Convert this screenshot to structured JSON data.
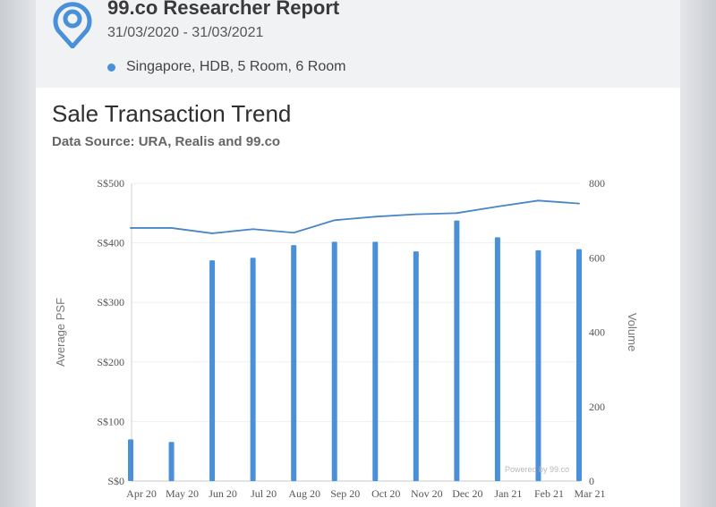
{
  "report": {
    "title": "99.co Researcher Report",
    "date_range": "31/03/2020 - 31/03/2021",
    "filter": "Singapore, HDB, 5 Room, 6 Room"
  },
  "colors": {
    "accent": "#4a90d9",
    "bar": "#4a90d9",
    "line": "#4a86c5"
  },
  "chart_data": {
    "type": "bar+line",
    "title": "Sale Transaction Trend",
    "subtitle": "Data Source: URA, Realis and 99.co",
    "categories": [
      "Apr 20",
      "May 20",
      "Jun 20",
      "Jul 20",
      "Aug 20",
      "Sep 20",
      "Oct 20",
      "Nov 20",
      "Dec 20",
      "Jan 21",
      "Feb 21",
      "Mar 21"
    ],
    "series": [
      {
        "type": "bar",
        "axis": "right",
        "values": [
          112,
          105,
          593,
          600,
          634,
          643,
          643,
          617,
          700,
          655,
          620,
          623
        ]
      },
      {
        "type": "line",
        "axis": "left",
        "values": [
          425,
          425,
          416,
          423,
          417,
          438,
          444,
          448,
          450,
          461,
          471,
          466
        ]
      }
    ],
    "ylabel_left": "Average PSF",
    "ylabel_right": "Volume",
    "ylim_left": [
      0,
      500
    ],
    "ylim_right": [
      0,
      800
    ],
    "yticks_left": [
      "S$0",
      "S$100",
      "S$200",
      "S$300",
      "S$400",
      "S$500"
    ],
    "yticks_right": [
      "0",
      "200",
      "400",
      "600",
      "800"
    ],
    "grid": true,
    "credit": "Powered by 99.co"
  }
}
